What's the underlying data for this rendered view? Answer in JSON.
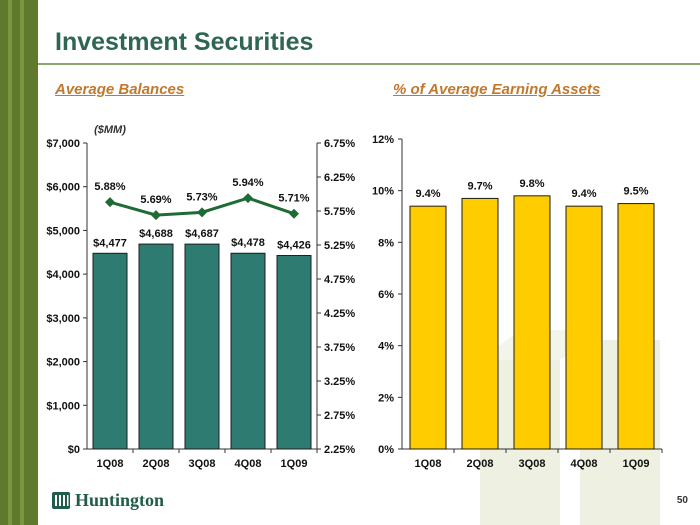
{
  "slide": {
    "title": "Investment Securities",
    "left_subtitle": "Average Balances",
    "right_subtitle": "% of Average Earning Assets",
    "unit_note": "($MM)",
    "page_number": "50",
    "logo_text": "Huntington"
  },
  "colors": {
    "title": "#2e6652",
    "subtitle": "#c1782f",
    "bar_teal": "#2e7b71",
    "line_green": "#1e6b34",
    "bar_gold": "#ffcc00",
    "brand_band": "#5f7a2c"
  },
  "chart_data": [
    {
      "type": "bar",
      "categories": [
        "1Q08",
        "2Q08",
        "3Q08",
        "4Q08",
        "1Q09"
      ],
      "series": [
        {
          "values": [
            4477,
            4688,
            4687,
            4478,
            4426
          ],
          "labels": [
            "$4,477",
            "$4,688",
            "$4,687",
            "$4,478",
            "$4,426"
          ]
        }
      ],
      "line_series": [
        {
          "values": [
            5.88,
            5.69,
            5.73,
            5.94,
            5.71
          ],
          "labels": [
            "5.88%",
            "5.69%",
            "5.73%",
            "5.94%",
            "5.71%"
          ]
        }
      ],
      "ylim": [
        0,
        7000
      ],
      "y_ticks": [
        "$0",
        "$1,000",
        "$2,000",
        "$3,000",
        "$4,000",
        "$5,000",
        "$6,000",
        "$7,000"
      ],
      "y2lim": [
        2.25,
        6.75
      ],
      "y2_ticks": [
        "2.25%",
        "2.75%",
        "3.25%",
        "3.75%",
        "4.25%",
        "4.75%",
        "5.25%",
        "5.75%",
        "6.25%",
        "6.75%"
      ],
      "grid": false
    },
    {
      "type": "bar",
      "categories": [
        "1Q08",
        "2Q08",
        "3Q08",
        "4Q08",
        "1Q09"
      ],
      "series": [
        {
          "values": [
            9.4,
            9.7,
            9.8,
            9.4,
            9.5
          ],
          "labels": [
            "9.4%",
            "9.7%",
            "9.8%",
            "9.4%",
            "9.5%"
          ]
        }
      ],
      "ylim": [
        0,
        12
      ],
      "y_ticks": [
        "0%",
        "2%",
        "4%",
        "6%",
        "8%",
        "10%",
        "12%"
      ],
      "grid": false
    }
  ]
}
